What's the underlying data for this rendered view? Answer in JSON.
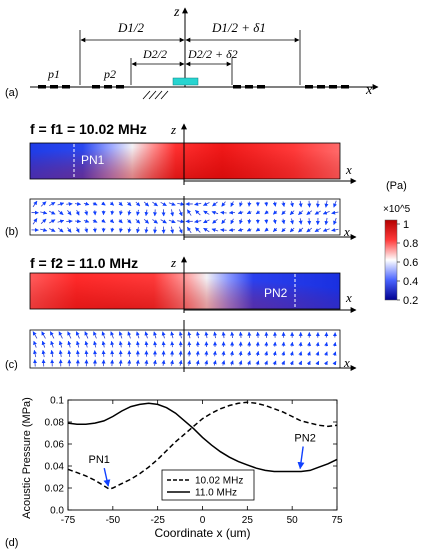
{
  "panel_labels": {
    "a": "(a)",
    "b": "(b)",
    "c": "(c)",
    "d": "(d)"
  },
  "schematic": {
    "axis_z": "z",
    "axis_x": "x",
    "d1_half": "D1/2",
    "d1_half_plus": "D1/2 + δ1",
    "d2_half": "D2/2",
    "d2_half_plus": "D2/2 + δ2",
    "p1": "p1",
    "p2": "p2"
  },
  "field_b": {
    "title": "f = f1 = 10.02 MHz",
    "node_label": "PN1",
    "axis_z": "z",
    "axis_x": "x"
  },
  "field_c": {
    "title": "f = f2 = 11.0 MHz",
    "node_label": "PN2",
    "axis_z": "z",
    "axis_x": "x"
  },
  "colorbar": {
    "unit": "(Pa)",
    "scale": "×10^5",
    "ticks": [
      "1",
      "0.8",
      "0.6",
      "0.4",
      "0.2"
    ],
    "colors": [
      "#b40000",
      "#ff3a3a",
      "#ffffff",
      "#4a64ff",
      "#000090"
    ]
  },
  "chart_data": {
    "type": "line",
    "xlabel": "Coordinate x (um)",
    "ylabel": "Acoustic Pressure (MPa)",
    "xlim": [
      -75,
      75
    ],
    "ylim": [
      0.0,
      0.1
    ],
    "xticks": [
      "-75",
      "-50",
      "-25",
      "0",
      "25",
      "50",
      "75"
    ],
    "yticks": [
      "0.0",
      "0.02",
      "0.04",
      "0.06",
      "0.08",
      "0.1"
    ],
    "series": [
      {
        "name": "10.02 MHz",
        "style": "dashed",
        "x": [
          -75,
          -70,
          -65,
          -60,
          -55,
          -52,
          -50,
          -45,
          -40,
          -35,
          -30,
          -25,
          -20,
          -15,
          -10,
          -5,
          0,
          5,
          10,
          15,
          20,
          25,
          30,
          35,
          40,
          45,
          50,
          55,
          60,
          65,
          70,
          75
        ],
        "y": [
          0.037,
          0.034,
          0.031,
          0.027,
          0.022,
          0.019,
          0.02,
          0.024,
          0.028,
          0.033,
          0.039,
          0.046,
          0.054,
          0.062,
          0.069,
          0.076,
          0.083,
          0.088,
          0.092,
          0.095,
          0.097,
          0.098,
          0.097,
          0.095,
          0.092,
          0.089,
          0.085,
          0.081,
          0.079,
          0.077,
          0.076,
          0.077
        ]
      },
      {
        "name": "11.0 MHz",
        "style": "solid",
        "x": [
          -75,
          -70,
          -65,
          -60,
          -55,
          -50,
          -45,
          -40,
          -35,
          -30,
          -25,
          -20,
          -15,
          -10,
          -5,
          0,
          5,
          10,
          15,
          20,
          25,
          30,
          35,
          40,
          45,
          50,
          55,
          60,
          65,
          70,
          75
        ],
        "y": [
          0.079,
          0.078,
          0.078,
          0.079,
          0.081,
          0.085,
          0.09,
          0.094,
          0.096,
          0.097,
          0.096,
          0.093,
          0.088,
          0.081,
          0.074,
          0.066,
          0.059,
          0.053,
          0.048,
          0.044,
          0.041,
          0.038,
          0.036,
          0.035,
          0.035,
          0.035,
          0.035,
          0.036,
          0.039,
          0.042,
          0.046
        ]
      }
    ],
    "annotations": [
      {
        "text": "PN1",
        "x": -52,
        "y": 0.019
      },
      {
        "text": "PN2",
        "x": 55,
        "y": 0.035
      }
    ],
    "legend_position": "bottom-center",
    "grid": false
  }
}
